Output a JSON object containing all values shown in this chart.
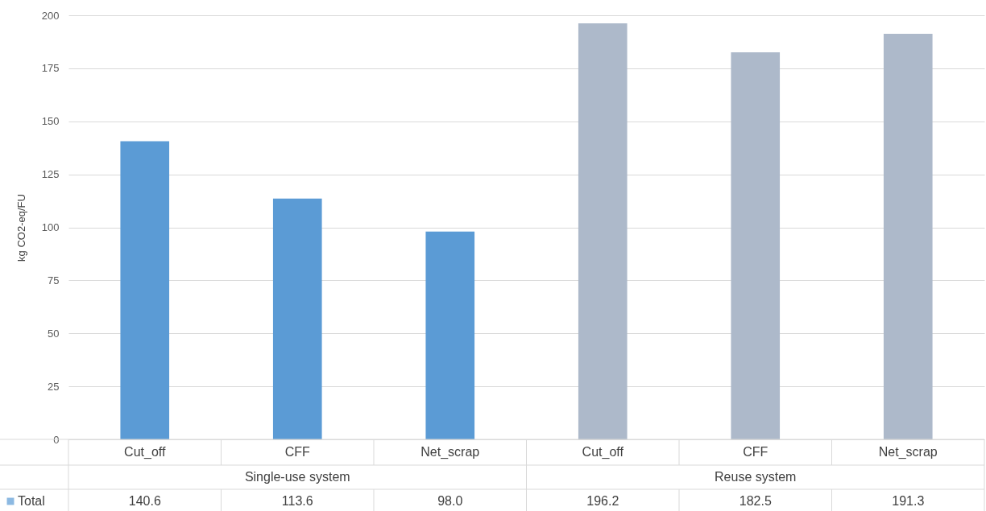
{
  "chart_data": {
    "type": "bar",
    "ylabel": "kg CO2-eq/FU",
    "categories": [
      "Cut_off",
      "CFF",
      "Net_scrap",
      "Cut_off",
      "CFF",
      "Net_scrap"
    ],
    "series": [
      {
        "name": "Total",
        "color": "#5b9bd5",
        "colors": [
          "#5b9bd5",
          "#5b9bd5",
          "#5b9bd5",
          "#adb9ca",
          "#adb9ca",
          "#adb9ca"
        ],
        "values": [
          140.6,
          113.6,
          98.0,
          196.2,
          182.5,
          191.3
        ],
        "value_labels": [
          "140.6",
          "113.6",
          "98.0",
          "196.2",
          "182.5",
          "191.3"
        ]
      }
    ],
    "annotations": [
      "Single-use system",
      "Reuse system"
    ],
    "ylim": [
      0,
      200
    ],
    "yticks": [
      0,
      25,
      50,
      75,
      100,
      125,
      150,
      175,
      200
    ],
    "grid": "y",
    "legend": "bottom"
  }
}
